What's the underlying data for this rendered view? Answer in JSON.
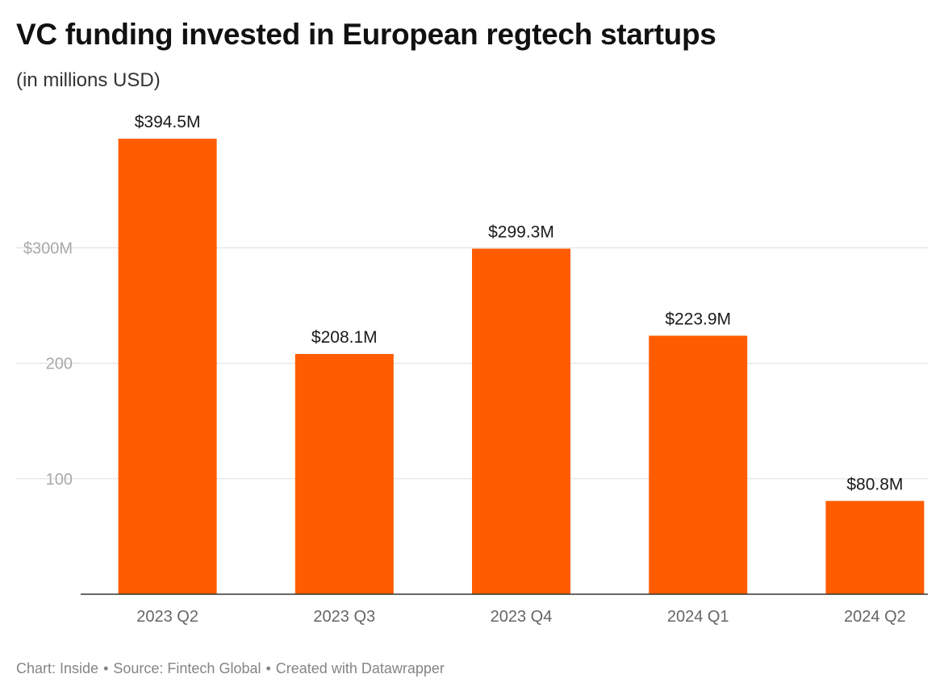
{
  "header": {
    "title": "VC funding invested in European regtech startups",
    "subtitle": "(in millions USD)"
  },
  "chart_data": {
    "type": "bar",
    "title": "VC funding invested in European regtech startups",
    "subtitle": "(in millions USD)",
    "categories": [
      "2023 Q2",
      "2023 Q3",
      "2023 Q4",
      "2024 Q1",
      "2024 Q2"
    ],
    "values": [
      394.5,
      208.1,
      299.3,
      223.9,
      80.8
    ],
    "value_labels": [
      "$394.5M",
      "$208.1M",
      "$299.3M",
      "$223.9M",
      "$80.8M"
    ],
    "yticks": [
      100,
      200,
      300
    ],
    "ytick_labels": [
      "100",
      "200",
      "$300M"
    ],
    "ylim": [
      0,
      400
    ],
    "xlabel": "",
    "ylabel": "",
    "grid": true,
    "bar_color": "#ff5c00",
    "gridline_color": "#e2e2e2",
    "tick_label_color": "#a9a9a9",
    "axis_label_color": "#666666"
  },
  "footer": {
    "chart_credit": "Chart: Inside",
    "source": "Source: Fintech Global",
    "created_with": "Created with Datawrapper",
    "separator": "•"
  }
}
